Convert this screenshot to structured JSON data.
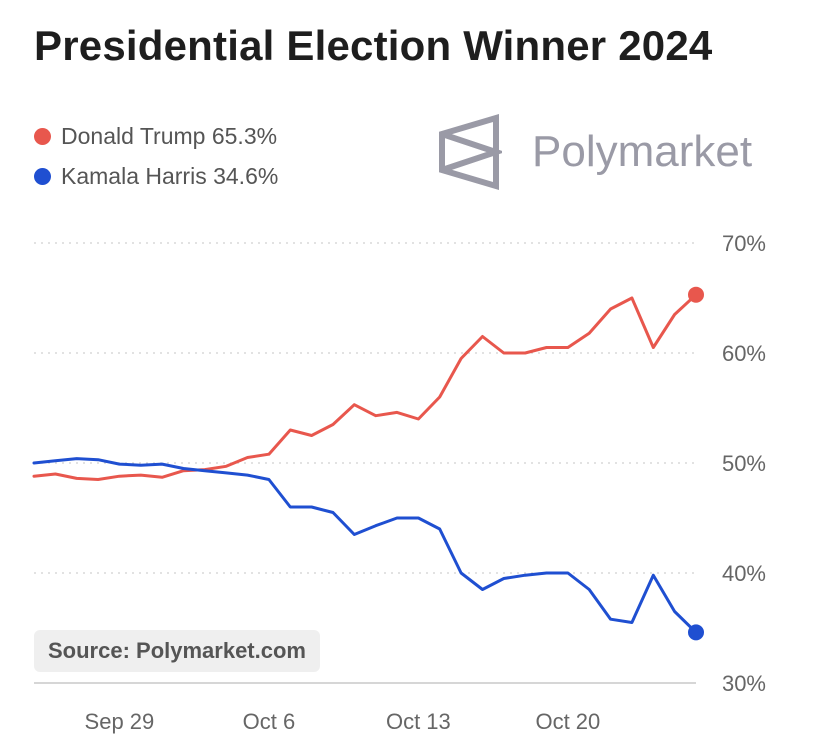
{
  "title": "Presidential Election Winner 2024",
  "brand": {
    "name": "Polymarket",
    "color": "#9a9aa6"
  },
  "source": "Source: Polymarket.com",
  "legend": [
    {
      "label": "Donald Trump 65.3%",
      "color": "#e8574d"
    },
    {
      "label": "Kamala Harris 34.6%",
      "color": "#1f4fd1"
    }
  ],
  "chart_data": {
    "type": "line",
    "title": "Presidential Election Winner 2024",
    "x_ticks": [
      "Sep 29",
      "Oct 6",
      "Oct 13",
      "Oct 20"
    ],
    "y_ticks": [
      "30%",
      "40%",
      "50%",
      "60%",
      "70%"
    ],
    "ylim": [
      30,
      70
    ],
    "grid": true,
    "legend_position": "top-left",
    "series": [
      {
        "name": "Donald Trump",
        "color": "#e8574d",
        "final_label": "65.3%",
        "values": [
          [
            "Sep 25",
            48.8
          ],
          [
            "Sep 26",
            49.0
          ],
          [
            "Sep 27",
            48.6
          ],
          [
            "Sep 28",
            48.5
          ],
          [
            "Sep 29",
            48.8
          ],
          [
            "Sep 30",
            48.9
          ],
          [
            "Oct 1",
            48.7
          ],
          [
            "Oct 2",
            49.3
          ],
          [
            "Oct 3",
            49.4
          ],
          [
            "Oct 4",
            49.7
          ],
          [
            "Oct 5",
            50.5
          ],
          [
            "Oct 6",
            50.8
          ],
          [
            "Oct 7",
            53.0
          ],
          [
            "Oct 8",
            52.5
          ],
          [
            "Oct 9",
            53.5
          ],
          [
            "Oct 10",
            55.3
          ],
          [
            "Oct 11",
            54.3
          ],
          [
            "Oct 12",
            54.6
          ],
          [
            "Oct 13",
            54.0
          ],
          [
            "Oct 14",
            56.0
          ],
          [
            "Oct 15",
            59.5
          ],
          [
            "Oct 16",
            61.5
          ],
          [
            "Oct 17",
            60.0
          ],
          [
            "Oct 18",
            60.0
          ],
          [
            "Oct 19",
            60.5
          ],
          [
            "Oct 20",
            60.5
          ],
          [
            "Oct 21",
            61.8
          ],
          [
            "Oct 22",
            64.0
          ],
          [
            "Oct 23",
            65.0
          ],
          [
            "Oct 24",
            60.5
          ],
          [
            "Oct 25",
            63.5
          ],
          [
            "Oct 26",
            65.3
          ]
        ]
      },
      {
        "name": "Kamala Harris",
        "color": "#1f4fd1",
        "final_label": "34.6%",
        "values": [
          [
            "Sep 25",
            50.0
          ],
          [
            "Sep 26",
            50.2
          ],
          [
            "Sep 27",
            50.4
          ],
          [
            "Sep 28",
            50.3
          ],
          [
            "Sep 29",
            49.9
          ],
          [
            "Sep 30",
            49.8
          ],
          [
            "Oct 1",
            49.9
          ],
          [
            "Oct 2",
            49.5
          ],
          [
            "Oct 3",
            49.3
          ],
          [
            "Oct 4",
            49.1
          ],
          [
            "Oct 5",
            48.9
          ],
          [
            "Oct 6",
            48.5
          ],
          [
            "Oct 7",
            46.0
          ],
          [
            "Oct 8",
            46.0
          ],
          [
            "Oct 9",
            45.5
          ],
          [
            "Oct 10",
            43.5
          ],
          [
            "Oct 11",
            44.3
          ],
          [
            "Oct 12",
            45.0
          ],
          [
            "Oct 13",
            45.0
          ],
          [
            "Oct 14",
            44.0
          ],
          [
            "Oct 15",
            40.0
          ],
          [
            "Oct 16",
            38.5
          ],
          [
            "Oct 17",
            39.5
          ],
          [
            "Oct 18",
            39.8
          ],
          [
            "Oct 19",
            40.0
          ],
          [
            "Oct 20",
            40.0
          ],
          [
            "Oct 21",
            38.5
          ],
          [
            "Oct 22",
            35.8
          ],
          [
            "Oct 23",
            35.5
          ],
          [
            "Oct 24",
            39.8
          ],
          [
            "Oct 25",
            36.5
          ],
          [
            "Oct 26",
            34.6
          ]
        ]
      }
    ]
  }
}
